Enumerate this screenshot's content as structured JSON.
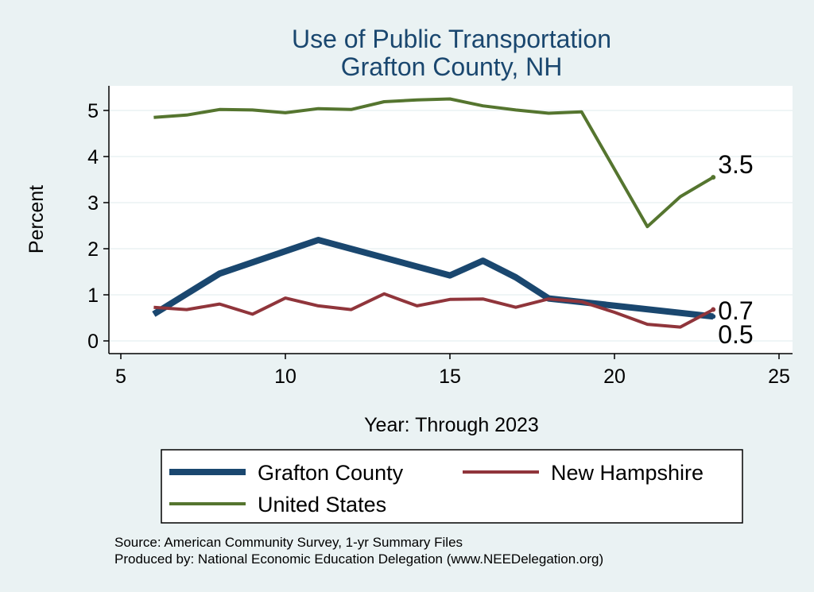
{
  "chart_data": {
    "type": "line",
    "title": [
      "Use of Public Transportation",
      "Grafton County, NH"
    ],
    "xlabel": "Year: Through 2023",
    "ylabel": "Percent",
    "xlim": [
      5,
      25
    ],
    "ylim": [
      0,
      5.5
    ],
    "xticks": [
      "5",
      "10",
      "15",
      "20",
      "25"
    ],
    "yticks": [
      "0",
      "1",
      "2",
      "3",
      "4",
      "5"
    ],
    "grid": true,
    "legend_position": "bottom",
    "series": [
      {
        "name": "Grafton County",
        "color": "#1a476f",
        "x": [
          6,
          8,
          11,
          15,
          16,
          17,
          18,
          23
        ],
        "y": [
          0.58,
          1.46,
          2.19,
          1.42,
          1.74,
          1.38,
          0.92,
          0.53
        ],
        "end_label": "0.5"
      },
      {
        "name": "New Hampshire",
        "color": "#90353b",
        "x": [
          6,
          7,
          8,
          9,
          10,
          11,
          12,
          13,
          14,
          15,
          16,
          17,
          18,
          19,
          20,
          21,
          22,
          23
        ],
        "y": [
          0.73,
          0.68,
          0.8,
          0.58,
          0.93,
          0.76,
          0.68,
          1.02,
          0.76,
          0.9,
          0.91,
          0.73,
          0.91,
          0.85,
          0.62,
          0.36,
          0.3,
          0.68
        ],
        "end_label": "0.7"
      },
      {
        "name": "United States",
        "color": "#55752f",
        "x": [
          6,
          7,
          8,
          9,
          10,
          11,
          12,
          13,
          14,
          15,
          16,
          17,
          18,
          19,
          21,
          22,
          23
        ],
        "y": [
          4.85,
          4.9,
          5.02,
          5.01,
          4.95,
          5.04,
          5.02,
          5.19,
          5.23,
          5.25,
          5.1,
          5.01,
          4.94,
          4.97,
          2.48,
          3.13,
          3.55
        ],
        "end_label": "3.5"
      }
    ],
    "notes": [
      "Source: American Community Survey, 1-yr Summary Files",
      "Produced by: National Economic Education Delegation (www.NEEDelegation.org)"
    ]
  }
}
